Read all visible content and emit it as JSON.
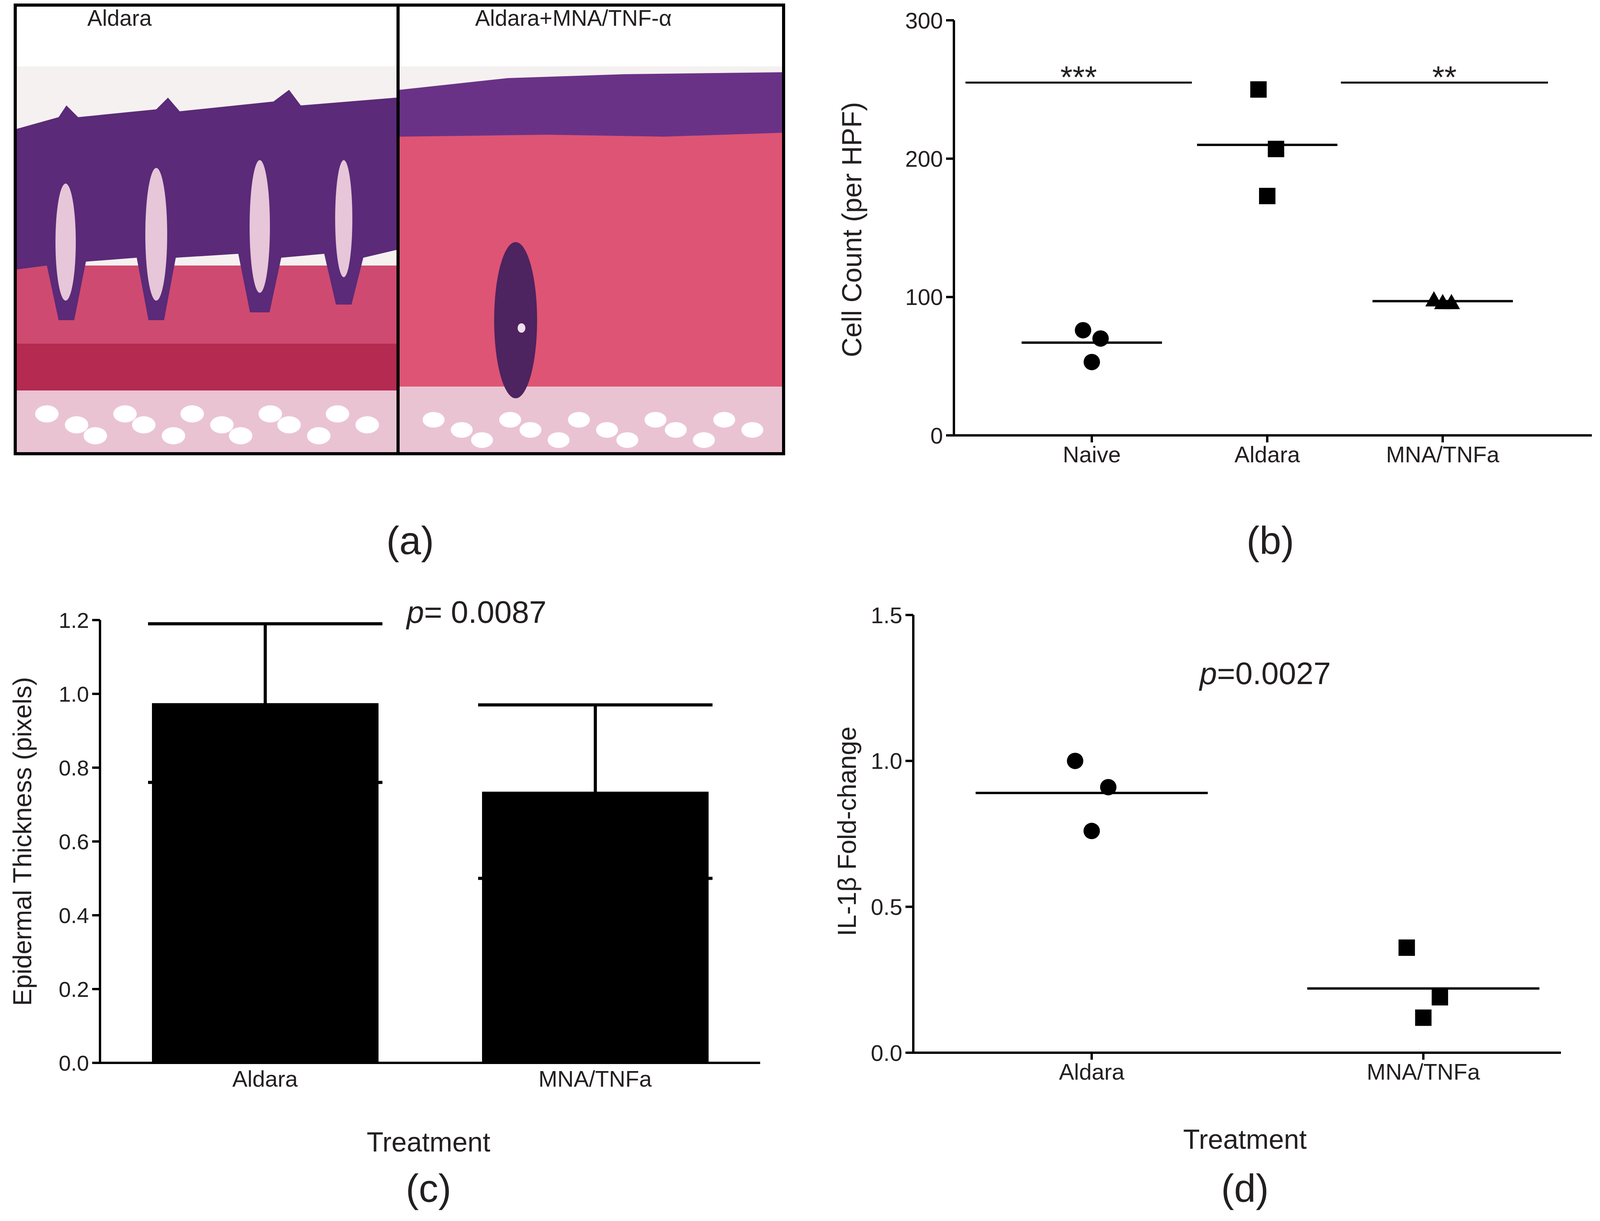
{
  "chart_data": [
    {
      "type": "image",
      "panel_label": "(a)",
      "titles": [
        "Aldara",
        "Aldara+MNA/TNF-α"
      ]
    },
    {
      "type": "scatter",
      "panel_label": "(b)",
      "ylabel": "Cell Count (per HPF)",
      "series": [
        {
          "name": "Naive",
          "marker": "circle",
          "color": "#000000",
          "values": [
            76,
            70,
            53
          ],
          "mean": 67
        },
        {
          "name": "Aldara",
          "marker": "square",
          "color": "#000000",
          "values": [
            250,
            207,
            173
          ],
          "mean": 210
        },
        {
          "name": "MNA/TNFa",
          "marker": "triangle",
          "color": "#000000",
          "values": [
            98,
            96,
            96
          ],
          "mean": 97
        }
      ],
      "ylim": [
        0,
        300
      ],
      "yticks": [
        0,
        100,
        200,
        300
      ],
      "significance": [
        {
          "between": [
            "Naive",
            "Aldara"
          ],
          "label": "***",
          "y": 255
        },
        {
          "between": [
            "Aldara",
            "MNA/TNFa"
          ],
          "label": "**",
          "y": 255
        }
      ]
    },
    {
      "type": "bar",
      "panel_label": "(c)",
      "categories": [
        "Aldara",
        "MNA/TNFa"
      ],
      "values": [
        0.975,
        0.735
      ],
      "errors": [
        0.215,
        0.235
      ],
      "color": "#000000",
      "xlabel": "Treatment",
      "ylabel": "Epidermal Thickness (pixels)",
      "ylim": [
        0,
        1.2
      ],
      "yticks": [
        {
          "value": 0,
          "label": "0.0"
        },
        0.2,
        0.4,
        0.6,
        0.8,
        {
          "value": 1,
          "label": "1.0"
        },
        1.2
      ],
      "annotations": [
        "p= 0.0087"
      ]
    },
    {
      "type": "scatter",
      "panel_label": "(d)",
      "xlabel": "Treatment",
      "ylabel": "IL-1β Fold-change",
      "series": [
        {
          "name": "Aldara",
          "marker": "circle",
          "color": "#000000",
          "values": [
            1.0,
            0.91,
            0.76
          ],
          "mean": 0.89
        },
        {
          "name": "MNA/TNFa",
          "marker": "square",
          "color": "#000000",
          "values": [
            0.36,
            0.19,
            0.12
          ],
          "mean": 0.22
        }
      ],
      "ylim": [
        0,
        1.5
      ],
      "yticks": [
        {
          "value": 0,
          "label": "0.0"
        },
        0.5,
        {
          "value": 1,
          "label": "1.0"
        },
        1.5
      ],
      "annotations": [
        "p=0.0027"
      ]
    }
  ]
}
